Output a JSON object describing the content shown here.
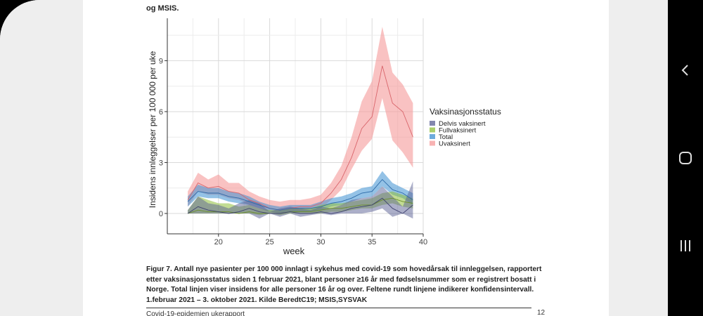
{
  "document": {
    "top_text": "og MSIS.",
    "caption": "Figur 7. Antall nye pasienter per 100 000 innlagt i sykehus med covid-19 som hovedårsak til innleggelsen, rapportert etter vaksinasjonsstatus siden 1 februar 2021, blant personer ≥16 år med fødselsnummer som er registrert bosatt i Norge. Total linjen viser insidens for alle personer 16 år og over. Feltene rundt linjene indikerer konfidensintervall. 1.februar 2021 – 3. oktober 2021. Kilde BeredtC19; MSIS,SYSVAK",
    "footer": "Covid-19-epidemien ukerapport",
    "page_number": "12"
  },
  "navbar": {
    "back": "back-icon",
    "home": "home-icon",
    "recents": "recents-icon"
  },
  "chart_data": {
    "type": "line",
    "title": "",
    "xlabel": "week",
    "ylabel": "Insidens innleggelser per 100 000 per uke",
    "xlim": [
      15,
      40
    ],
    "ylim": [
      -1.2,
      11.5
    ],
    "xticks": [
      20,
      25,
      30,
      35,
      40
    ],
    "yticks": [
      0,
      3,
      6,
      9
    ],
    "grid": true,
    "legend_title": "Vaksinasjonsstatus",
    "legend_position": "right",
    "x": [
      17,
      18,
      19,
      20,
      21,
      22,
      23,
      24,
      25,
      26,
      27,
      28,
      29,
      30,
      31,
      32,
      33,
      34,
      35,
      36,
      37,
      38,
      39
    ],
    "series": [
      {
        "name": "Delvis vaksinert",
        "color": "#5a5f93",
        "values": [
          0.0,
          0.4,
          0.2,
          0.1,
          0.0,
          0.1,
          0.3,
          0.1,
          0.0,
          0.0,
          0.1,
          0.0,
          0.0,
          0.1,
          0.0,
          0.1,
          0.3,
          0.4,
          0.5,
          0.9,
          0.3,
          0.0,
          0.5
        ],
        "lower": [
          0.0,
          0.0,
          0.0,
          0.0,
          0.0,
          0.0,
          0.0,
          -0.3,
          0.0,
          -0.2,
          0.0,
          -0.2,
          -0.1,
          0.0,
          -0.1,
          0.0,
          0.0,
          0.0,
          0.1,
          0.3,
          -0.2,
          0.0,
          -0.3
        ],
        "upper": [
          0.2,
          1.0,
          0.6,
          0.5,
          0.3,
          0.6,
          0.8,
          0.6,
          0.1,
          0.3,
          0.4,
          0.3,
          0.2,
          0.4,
          0.3,
          0.5,
          0.8,
          0.9,
          1.0,
          1.6,
          1.0,
          0.4,
          1.9
        ]
      },
      {
        "name": "Fullvaksinert",
        "color": "#8fbf3a",
        "values": [
          0.0,
          0.2,
          0.1,
          0.1,
          0.1,
          0.0,
          0.1,
          0.0,
          0.0,
          0.0,
          0.1,
          0.1,
          0.1,
          0.2,
          0.3,
          0.3,
          0.4,
          0.5,
          0.5,
          0.8,
          0.9,
          0.7,
          0.6
        ],
        "lower": [
          0.0,
          0.0,
          0.0,
          0.0,
          0.0,
          0.0,
          0.0,
          -0.1,
          0.0,
          -0.1,
          0.0,
          0.0,
          0.0,
          0.0,
          0.1,
          0.1,
          0.2,
          0.3,
          0.3,
          0.5,
          0.6,
          0.4,
          0.3
        ],
        "upper": [
          0.2,
          1.0,
          0.8,
          0.6,
          0.6,
          0.4,
          0.5,
          0.3,
          0.2,
          0.2,
          0.3,
          0.3,
          0.3,
          0.5,
          0.6,
          0.6,
          0.7,
          0.8,
          0.9,
          1.2,
          1.3,
          1.1,
          0.9
        ]
      },
      {
        "name": "Total",
        "color": "#3d8fd1",
        "values": [
          0.7,
          1.3,
          1.2,
          1.2,
          1.0,
          0.9,
          0.7,
          0.5,
          0.3,
          0.2,
          0.3,
          0.3,
          0.3,
          0.4,
          0.6,
          0.7,
          0.9,
          1.2,
          1.3,
          2.0,
          1.4,
          1.2,
          0.8
        ],
        "lower": [
          0.4,
          1.0,
          0.9,
          0.9,
          0.7,
          0.6,
          0.5,
          0.3,
          0.1,
          0.0,
          0.1,
          0.1,
          0.1,
          0.2,
          0.4,
          0.5,
          0.7,
          0.9,
          1.0,
          1.6,
          1.1,
          0.9,
          0.5
        ],
        "upper": [
          1.0,
          1.7,
          1.5,
          1.5,
          1.3,
          1.2,
          1.0,
          0.7,
          0.5,
          0.4,
          0.5,
          0.5,
          0.5,
          0.7,
          0.9,
          1.0,
          1.2,
          1.5,
          1.6,
          2.5,
          1.8,
          1.5,
          1.2
        ]
      },
      {
        "name": "Uvaksinert",
        "color": "#f59a9a",
        "values": [
          0.8,
          1.8,
          1.5,
          1.6,
          1.3,
          1.2,
          0.8,
          0.6,
          0.3,
          0.2,
          0.3,
          0.4,
          0.4,
          0.6,
          1.2,
          2.0,
          3.3,
          5.0,
          5.7,
          8.7,
          6.5,
          6.0,
          4.5
        ],
        "lower": [
          0.4,
          1.3,
          1.1,
          1.1,
          0.9,
          0.8,
          0.5,
          0.3,
          0.1,
          0.0,
          0.1,
          0.1,
          0.1,
          0.3,
          0.8,
          1.4,
          2.6,
          3.7,
          4.4,
          6.8,
          4.3,
          3.6,
          2.7
        ],
        "upper": [
          1.3,
          2.4,
          2.0,
          2.3,
          1.8,
          1.8,
          1.3,
          1.0,
          0.8,
          0.7,
          0.8,
          0.8,
          0.9,
          1.1,
          1.8,
          2.8,
          4.5,
          6.6,
          7.8,
          11.0,
          8.3,
          7.6,
          6.5
        ]
      }
    ]
  }
}
